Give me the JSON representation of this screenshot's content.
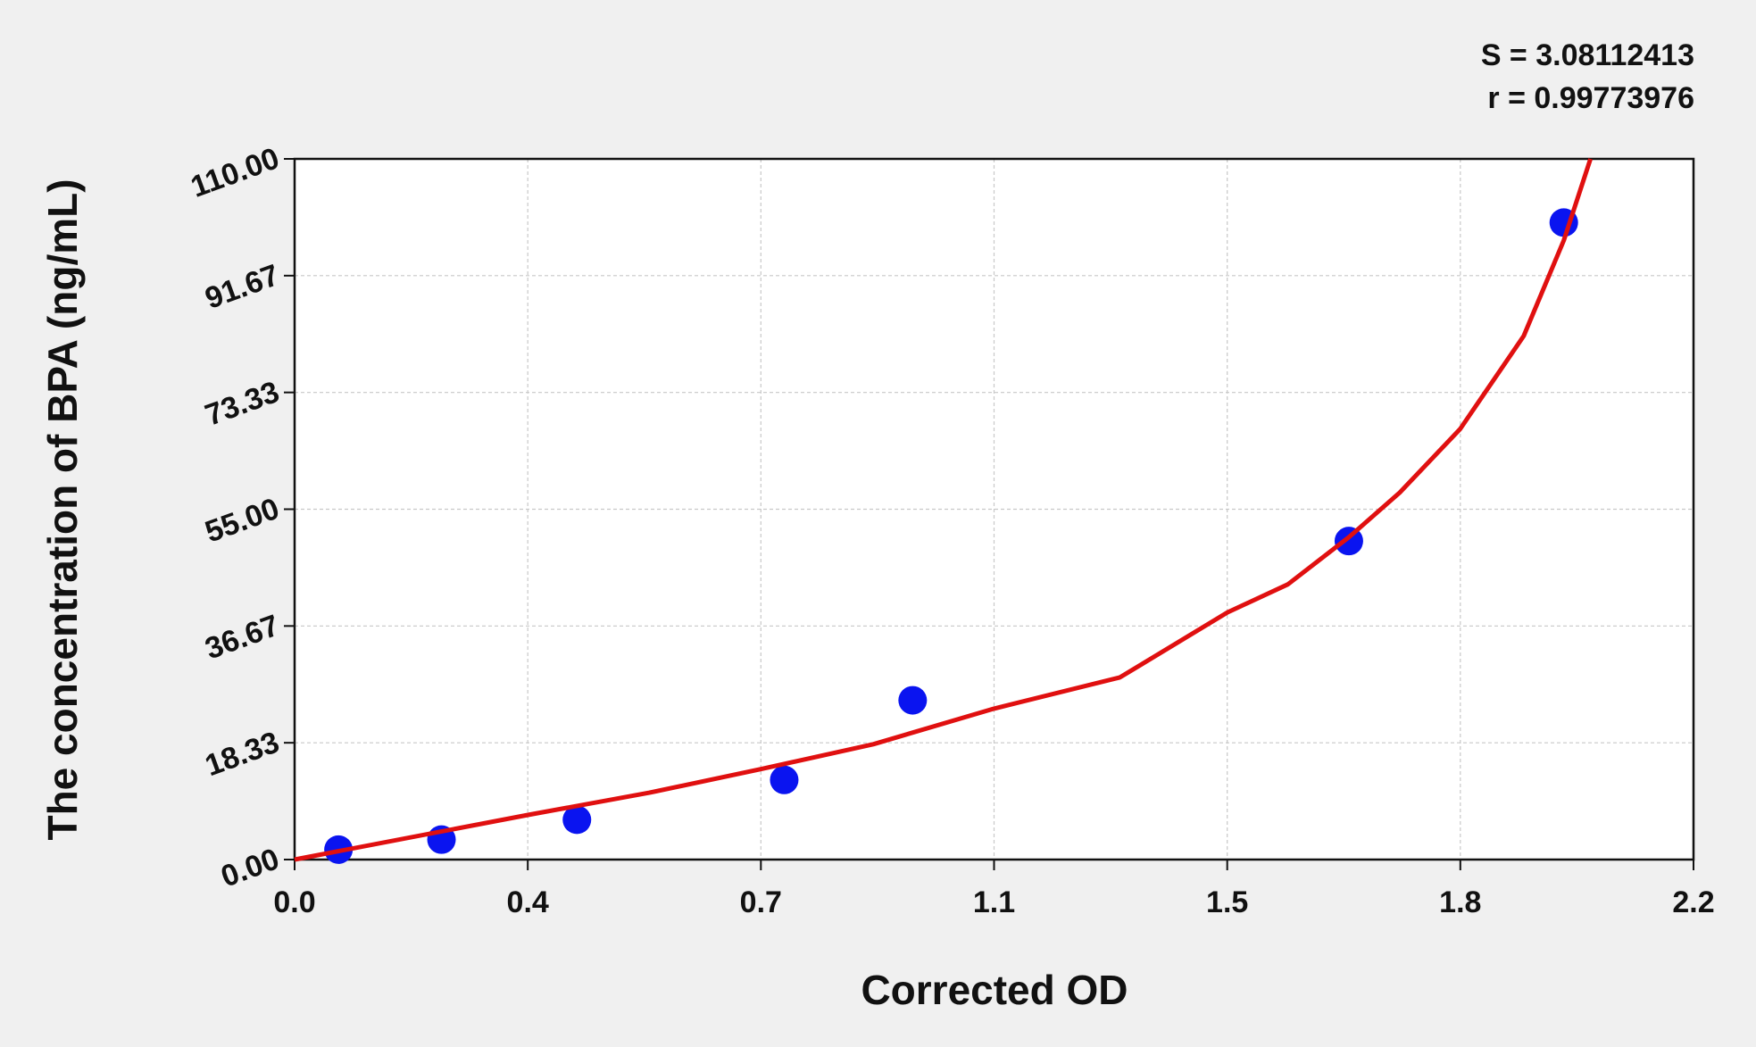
{
  "chart_data": {
    "type": "scatter",
    "x_label": "Corrected OD",
    "y_label": "The concentration of BPA (ng/mL)",
    "annotations": [
      "S = 3.08112413",
      "r = 0.99773976"
    ],
    "xlim": [
      0,
      2.2
    ],
    "ylim": [
      0,
      110
    ],
    "xticks": [
      {
        "value": 0,
        "label": "0.0"
      },
      {
        "value": 0.3667,
        "label": "0.4"
      },
      {
        "value": 0.7333,
        "label": "0.7"
      },
      {
        "value": 1.1,
        "label": "1.1"
      },
      {
        "value": 1.4667,
        "label": "1.5"
      },
      {
        "value": 1.8333,
        "label": "1.8"
      },
      {
        "value": 2.2,
        "label": "2.2"
      }
    ],
    "yticks": [
      {
        "value": 0,
        "label": "0.00"
      },
      {
        "value": 18.333,
        "label": "18.33"
      },
      {
        "value": 36.667,
        "label": "36.67"
      },
      {
        "value": 55,
        "label": "55.00"
      },
      {
        "value": 73.333,
        "label": "73.33"
      },
      {
        "value": 91.667,
        "label": "91.67"
      },
      {
        "value": 110,
        "label": "110.00"
      }
    ],
    "grid": true,
    "series": [
      {
        "mode": "markers",
        "color": "#0a14f0",
        "x": [
          0.069,
          0.231,
          0.444,
          0.77,
          0.972,
          1.658,
          1.996
        ],
        "values": [
          1.56,
          3.13,
          6.25,
          12.5,
          25,
          50,
          100
        ]
      },
      {
        "mode": "line",
        "color": "#e01010",
        "x": [
          0,
          0.367,
          0.558,
          0.733,
          0.91,
          1.1,
          1.298,
          1.467,
          1.562,
          1.658,
          1.738,
          1.833,
          1.933,
          1.996,
          2.038
        ],
        "values": [
          0,
          7.0,
          10.5,
          14.2,
          18.1,
          23.7,
          28.6,
          38.8,
          43.2,
          50.6,
          57.6,
          67.6,
          82.2,
          97.2,
          110
        ]
      }
    ]
  }
}
